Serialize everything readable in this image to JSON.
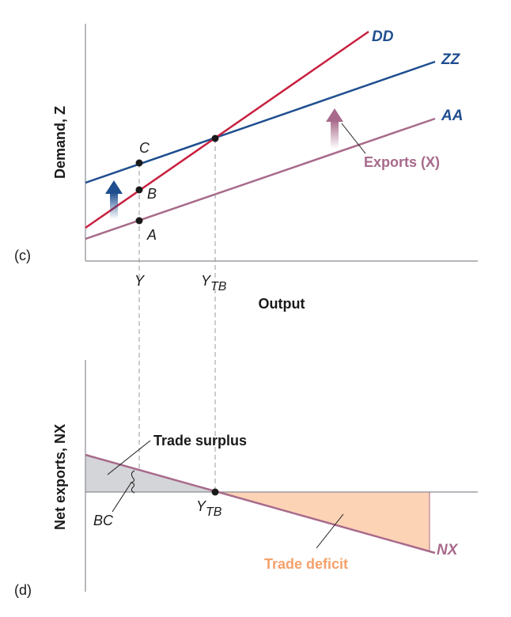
{
  "colors": {
    "dd": "#c8203f",
    "zz": "#1f4e8f",
    "aa": "#a86a8b",
    "nx": "#a86a8b",
    "surplus_fill": "#d4d5d8",
    "deficit_fill": "#fdd3b6",
    "deficit_text": "#f5a06a",
    "axis": "#8a8c92"
  },
  "panel_c": {
    "panel_label": "(c)",
    "y_axis_title": "Demand, Z",
    "x_axis_title": "Output",
    "curves": {
      "dd": "DD",
      "zz": "ZZ",
      "aa": "AA"
    },
    "points": {
      "a": "A",
      "b": "B",
      "c": "C"
    },
    "exports_label": "Exports (X)",
    "tick_y": "Y",
    "tick_ytb_main": "Y",
    "tick_ytb_sub": "TB"
  },
  "panel_d": {
    "panel_label": "(d)",
    "y_axis_title": "Net exports, NX",
    "curve_nx": "NX",
    "trade_surplus": "Trade surplus",
    "trade_deficit": "Trade deficit",
    "bc_label": "BC",
    "ytb_main": "Y",
    "ytb_sub": "TB"
  }
}
